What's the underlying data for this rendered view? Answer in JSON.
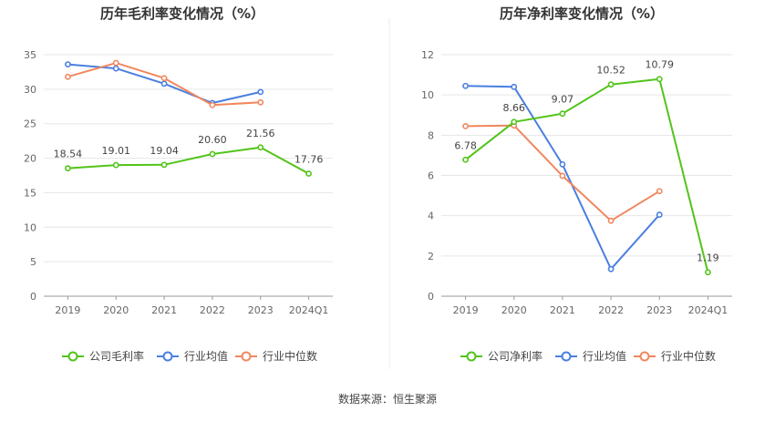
{
  "colors": {
    "company": "#52c41a",
    "industry_avg": "#4a7fe0",
    "industry_median": "#f0875e",
    "grid": "#e6e6e6",
    "axis": "#999999"
  },
  "source_text": "数据来源：恒生聚源",
  "chart_data": [
    {
      "type": "line",
      "title": "历年毛利率变化情况（%）",
      "categories": [
        "2019",
        "2020",
        "2021",
        "2022",
        "2023",
        "2024Q1"
      ],
      "ylim": [
        0,
        35
      ],
      "yticks": [
        "0",
        "5",
        "10",
        "15",
        "20",
        "25",
        "30",
        "35"
      ],
      "grid": true,
      "legend_position": "bottom",
      "series": [
        {
          "name": "公司毛利率",
          "color_key": "company",
          "values": [
            18.54,
            19.01,
            19.04,
            20.6,
            21.56,
            17.76
          ],
          "labels": [
            "18.54",
            "19.01",
            "19.04",
            "20.60",
            "21.56",
            "17.76"
          ]
        },
        {
          "name": "行业均值",
          "color_key": "industry_avg",
          "values": [
            33.6,
            33.0,
            30.8,
            28.0,
            29.6,
            null
          ]
        },
        {
          "name": "行业中位数",
          "color_key": "industry_median",
          "values": [
            31.8,
            33.8,
            31.6,
            27.7,
            28.1,
            null
          ]
        }
      ]
    },
    {
      "type": "line",
      "title": "历年净利率变化情况（%）",
      "categories": [
        "2019",
        "2020",
        "2021",
        "2022",
        "2023",
        "2024Q1"
      ],
      "ylim": [
        0,
        12
      ],
      "yticks": [
        "0",
        "2",
        "4",
        "6",
        "8",
        "10",
        "12"
      ],
      "grid": true,
      "legend_position": "bottom",
      "series": [
        {
          "name": "公司净利率",
          "color_key": "company",
          "values": [
            6.78,
            8.66,
            9.07,
            10.52,
            10.79,
            1.19
          ],
          "labels": [
            "6.78",
            "8.66",
            "9.07",
            "10.52",
            "10.79",
            "1.19"
          ]
        },
        {
          "name": "行业均值",
          "color_key": "industry_avg",
          "values": [
            10.45,
            10.4,
            6.55,
            1.35,
            4.05,
            null
          ]
        },
        {
          "name": "行业中位数",
          "color_key": "industry_median",
          "values": [
            8.45,
            8.48,
            5.98,
            3.75,
            5.22,
            null
          ]
        }
      ]
    }
  ]
}
